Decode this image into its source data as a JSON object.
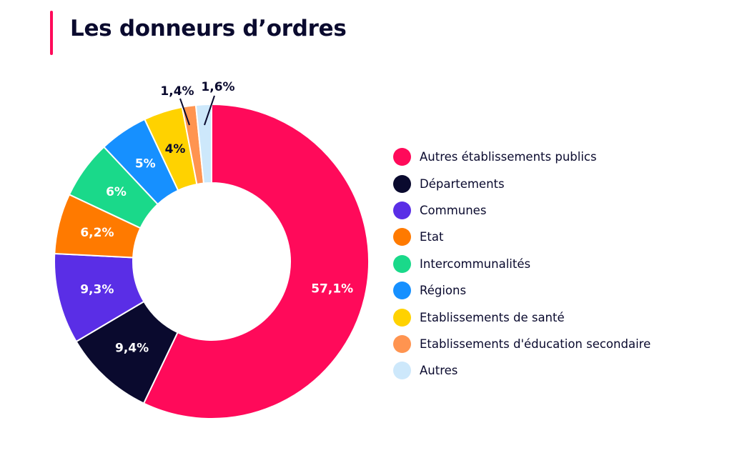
{
  "title": "Les donneurs d’ordres",
  "chart_data": {
    "type": "pie",
    "donut": true,
    "title": "Les donneurs d’ordres",
    "legend_position": "right",
    "slices": [
      {
        "label": "Autres établissements publics",
        "value": 57.1,
        "value_label": "57,1%",
        "color": "#ff0a5a",
        "label_color": "#ffffff"
      },
      {
        "label": "Départements",
        "value": 9.4,
        "value_label": "9,4%",
        "color": "#0a0a2e",
        "label_color": "#ffffff"
      },
      {
        "label": "Communes",
        "value": 9.3,
        "value_label": "9,3%",
        "color": "#5a2ee6",
        "label_color": "#ffffff"
      },
      {
        "label": "Etat",
        "value": 6.2,
        "value_label": "6,2%",
        "color": "#ff7a00",
        "label_color": "#ffffff"
      },
      {
        "label": "Intercommunalités",
        "value": 6.0,
        "value_label": "6%",
        "color": "#1ad98a",
        "label_color": "#ffffff"
      },
      {
        "label": "Régions",
        "value": 5.0,
        "value_label": "5%",
        "color": "#1690ff",
        "label_color": "#ffffff"
      },
      {
        "label": "Etablissements de santé",
        "value": 4.0,
        "value_label": "4%",
        "color": "#ffd200",
        "label_color": "#0a0a2e"
      },
      {
        "label": "Etablissements d'éducation secondaire",
        "value": 1.4,
        "value_label": "1,4%",
        "color": "#ff9450",
        "label_color": "#0a0a2e",
        "label_outside": true
      },
      {
        "label": "Autres",
        "value": 1.6,
        "value_label": "1,6%",
        "color": "#cde8fb",
        "label_color": "#0a0a2e",
        "label_outside": true
      }
    ]
  }
}
